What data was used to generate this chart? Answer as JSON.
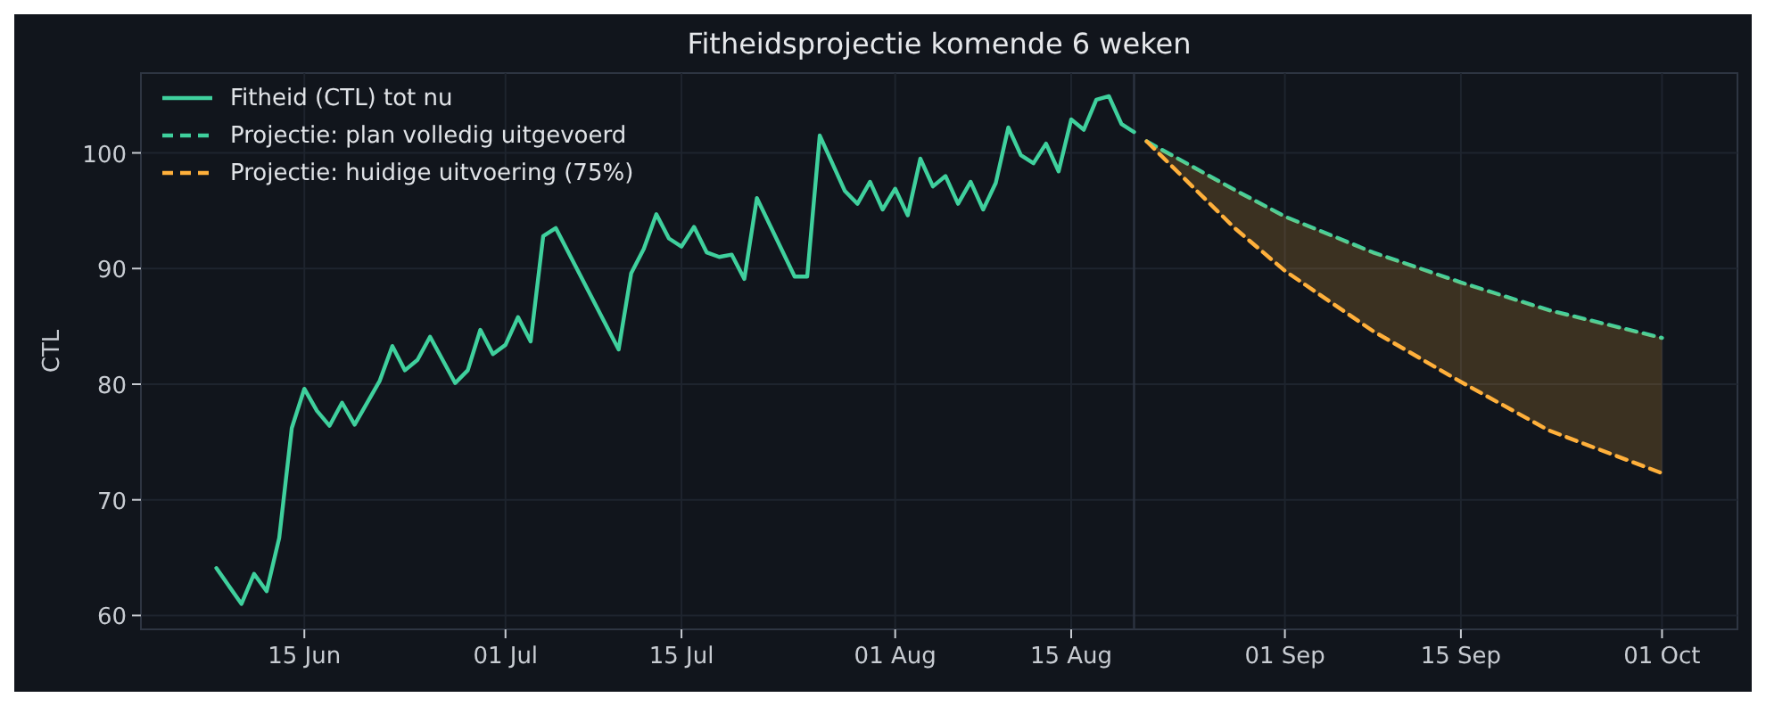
{
  "chart_data": {
    "type": "line",
    "title": "Fitheidsprojectie komende 6 weken",
    "ylabel": "CTL",
    "xlim": [
      "--06-02",
      "--10-07"
    ],
    "xticks": [
      {
        "value": "--06-15",
        "label": "15 Jun"
      },
      {
        "value": "--07-01",
        "label": "01 Jul"
      },
      {
        "value": "--07-15",
        "label": "15 Jul"
      },
      {
        "value": "--08-01",
        "label": "01 Aug"
      },
      {
        "value": "--08-15",
        "label": "15 Aug"
      },
      {
        "value": "--09-01",
        "label": "01 Sep"
      },
      {
        "value": "--09-15",
        "label": "15 Sep"
      },
      {
        "value": "--10-01",
        "label": "01 Oct"
      }
    ],
    "ylim": [
      58.8,
      106.9
    ],
    "yticks": [
      60,
      70,
      80,
      90,
      100
    ],
    "grid": true,
    "legend": "top left",
    "ref_lines": [
      {
        "axis": "x",
        "value": "--08-20",
        "color": "#2c3340"
      }
    ],
    "series": [
      {
        "name": "Fitheid (CTL) tot nu",
        "color": "#3fd09d",
        "line_style": "solid",
        "x": [
          "--06-08",
          "--06-10",
          "--06-11",
          "--06-12",
          "--06-13",
          "--06-14",
          "--06-15",
          "--06-16",
          "--06-17",
          "--06-18",
          "--06-19",
          "--06-21",
          "--06-22",
          "--06-23",
          "--06-24",
          "--06-25",
          "--06-27",
          "--06-28",
          "--06-29",
          "--06-30",
          "--07-01",
          "--07-02",
          "--07-03",
          "--07-04",
          "--07-05",
          "--07-10",
          "--07-11",
          "--07-12",
          "--07-13",
          "--07-14",
          "--07-15",
          "--07-16",
          "--07-17",
          "--07-18",
          "--07-19",
          "--07-20",
          "--07-21",
          "--07-24",
          "--07-25",
          "--07-26",
          "--07-28",
          "--07-29",
          "--07-30",
          "--07-31",
          "--08-01",
          "--08-02",
          "--08-03",
          "--08-04",
          "--08-05",
          "--08-06",
          "--08-07",
          "--08-08",
          "--08-09",
          "--08-10",
          "--08-11",
          "--08-12",
          "--08-13",
          "--08-14",
          "--08-15",
          "--08-16",
          "--08-17",
          "--08-18",
          "--08-19",
          "--08-20"
        ],
        "values": [
          64.1,
          61.0,
          63.6,
          62.1,
          66.7,
          76.2,
          79.6,
          77.7,
          76.4,
          78.4,
          76.5,
          80.3,
          83.3,
          81.2,
          82.1,
          84.1,
          80.1,
          81.2,
          84.7,
          82.6,
          83.4,
          85.8,
          83.7,
          92.8,
          93.5,
          83.0,
          89.6,
          91.7,
          94.7,
          92.6,
          91.9,
          93.6,
          91.4,
          91.0,
          91.2,
          89.1,
          96.1,
          89.3,
          89.3,
          101.5,
          96.7,
          95.6,
          97.5,
          95.1,
          96.9,
          94.6,
          99.5,
          97.1,
          98.0,
          95.6,
          97.5,
          95.1,
          97.4,
          102.2,
          99.8,
          99.1,
          100.8,
          98.4,
          102.9,
          102.0,
          104.6,
          104.9,
          102.5,
          101.8
        ]
      },
      {
        "name": "Projectie: plan volledig uitgevoerd",
        "color": "#3fd09d",
        "line_style": "dashed",
        "x": [
          "--08-21",
          "--08-28",
          "--09-01",
          "--09-08",
          "--09-15",
          "--09-22",
          "--10-01"
        ],
        "values": [
          101.0,
          96.8,
          94.5,
          91.4,
          88.8,
          86.4,
          84.0
        ]
      },
      {
        "name": "Projectie: huidige uitvoering (75%)",
        "color": "#ffb03b",
        "line_style": "dashed",
        "x": [
          "--08-21",
          "--08-28",
          "--09-01",
          "--09-08",
          "--09-15",
          "--09-22",
          "--10-01"
        ],
        "values": [
          101.0,
          93.5,
          89.8,
          84.6,
          80.2,
          76.0,
          72.3
        ],
        "lower": [
          101.0,
          93.5,
          89.8,
          84.6,
          80.2,
          76.0,
          72.3
        ],
        "upper": [
          101.0,
          96.8,
          94.5,
          91.4,
          88.8,
          86.4,
          84.0
        ]
      }
    ]
  }
}
